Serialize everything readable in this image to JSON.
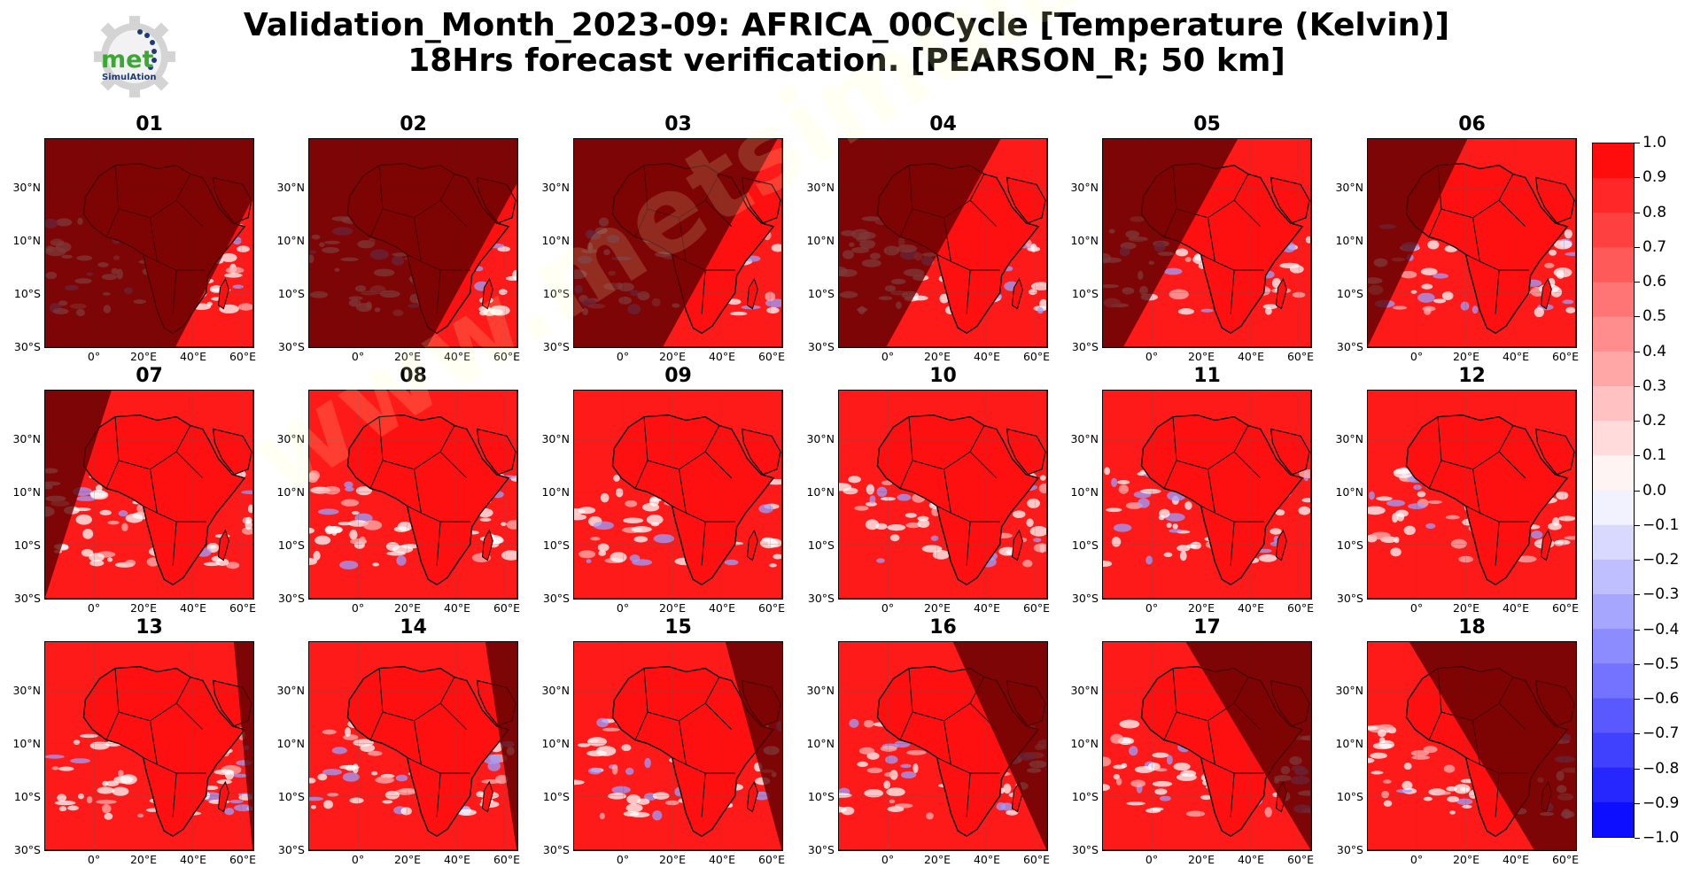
{
  "header": {
    "line1": "Validation_Month_2023-09: AFRICA_00Cycle [Temperature (Kelvin)]",
    "line2": "18Hrs forecast verification.  [PEARSON_R; 50 km]"
  },
  "logo": {
    "text_main": "met",
    "text_sub": "SimulAtion",
    "colors": {
      "green": "#3aa832",
      "navy": "#1d3a7a",
      "gear": "#d0d0d0"
    }
  },
  "watermark": "www.metsimulation.com",
  "axes": {
    "lat_labels": [
      "30°N",
      "10°N",
      "10°S",
      "30°S"
    ],
    "lon_labels": [
      "0°",
      "20°E",
      "40°E",
      "60°E"
    ]
  },
  "panels": [
    {
      "label": "01",
      "shade": 0.98,
      "daylight_from": "bottom-right"
    },
    {
      "label": "02",
      "shade": 0.92,
      "daylight_from": "bottom-right"
    },
    {
      "label": "03",
      "shade": 0.78,
      "daylight_from": "right"
    },
    {
      "label": "04",
      "shade": 0.58,
      "daylight_from": "right"
    },
    {
      "label": "05",
      "shade": 0.45,
      "daylight_from": "right"
    },
    {
      "label": "06",
      "shade": 0.28,
      "daylight_from": "right"
    },
    {
      "label": "07",
      "shade": 0.12,
      "daylight_from": "right"
    },
    {
      "label": "08",
      "shade": 0.0,
      "daylight_from": "all"
    },
    {
      "label": "09",
      "shade": 0.0,
      "daylight_from": "all"
    },
    {
      "label": "10",
      "shade": 0.0,
      "daylight_from": "all"
    },
    {
      "label": "11",
      "shade": 0.0,
      "daylight_from": "all"
    },
    {
      "label": "12",
      "shade": 0.0,
      "daylight_from": "all"
    },
    {
      "label": "13",
      "shade": 0.04,
      "daylight_from": "left"
    },
    {
      "label": "14",
      "shade": 0.1,
      "daylight_from": "left"
    },
    {
      "label": "15",
      "shade": 0.22,
      "daylight_from": "left"
    },
    {
      "label": "16",
      "shade": 0.4,
      "daylight_from": "left"
    },
    {
      "label": "17",
      "shade": 0.55,
      "daylight_from": "left"
    },
    {
      "label": "18",
      "shade": 0.75,
      "daylight_from": "left"
    }
  ],
  "colorbar": {
    "ticks": [
      "1.0",
      "0.9",
      "0.8",
      "0.7",
      "0.6",
      "0.5",
      "0.4",
      "0.3",
      "0.2",
      "0.1",
      "0.0",
      "−0.1",
      "−0.2",
      "−0.3",
      "−0.4",
      "−0.5",
      "−0.6",
      "−0.7",
      "−0.8",
      "−0.9",
      "−1.0"
    ],
    "max_color": "#ff0000",
    "min_color": "#0000ff",
    "mid_color": "#ffffff"
  }
}
